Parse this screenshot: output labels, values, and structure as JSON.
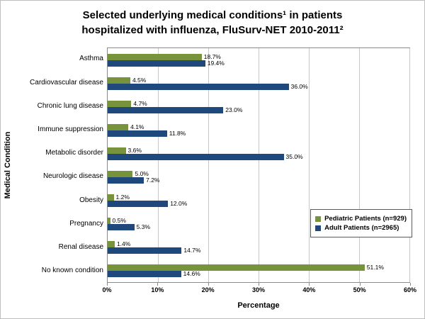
{
  "header": {
    "title_line1": "Selected underlying medical conditions¹ in patients",
    "title_line2": "hospitalized with influenza, FluSurv-NET 2010-2011²"
  },
  "chart_data": {
    "type": "bar",
    "orientation": "horizontal",
    "title": "Selected underlying medical conditions¹ in patients hospitalized with influenza, FluSurv-NET 2010-2011²",
    "xlabel": "Percentage",
    "ylabel": "Medical Condition",
    "xlim": [
      0,
      60
    ],
    "xticks": [
      "0%",
      "10%",
      "20%",
      "30%",
      "40%",
      "50%",
      "60%"
    ],
    "grid": true,
    "legend_position": "right-middle",
    "categories": [
      "Asthma",
      "Cardiovascular disease",
      "Chronic lung disease",
      "Immune suppression",
      "Metabolic disorder",
      "Neurologic disease",
      "Obesity",
      "Pregnancy",
      "Renal disease",
      "No known condition"
    ],
    "series": [
      {
        "name": "Pediatric Patients (n=929)",
        "color": "#77933c",
        "values": [
          18.7,
          4.5,
          4.7,
          4.1,
          3.6,
          5.0,
          1.2,
          0.5,
          1.4,
          51.1
        ],
        "labels": [
          "18.7%",
          "4.5%",
          "4.7%",
          "4.1%",
          "3.6%",
          "5.0%",
          "1.2%",
          "0.5%",
          "1.4%",
          "51.1%"
        ]
      },
      {
        "name": "Adult Patients (n=2965)",
        "color": "#1f497d",
        "values": [
          19.4,
          36.0,
          23.0,
          11.8,
          35.0,
          7.2,
          12.0,
          5.3,
          14.7,
          14.6
        ],
        "labels": [
          "19.4%",
          "36.0%",
          "23.0%",
          "11.8%",
          "35.0%",
          "7.2%",
          "12.0%",
          "5.3%",
          "14.7%",
          "14.6%"
        ]
      }
    ]
  }
}
